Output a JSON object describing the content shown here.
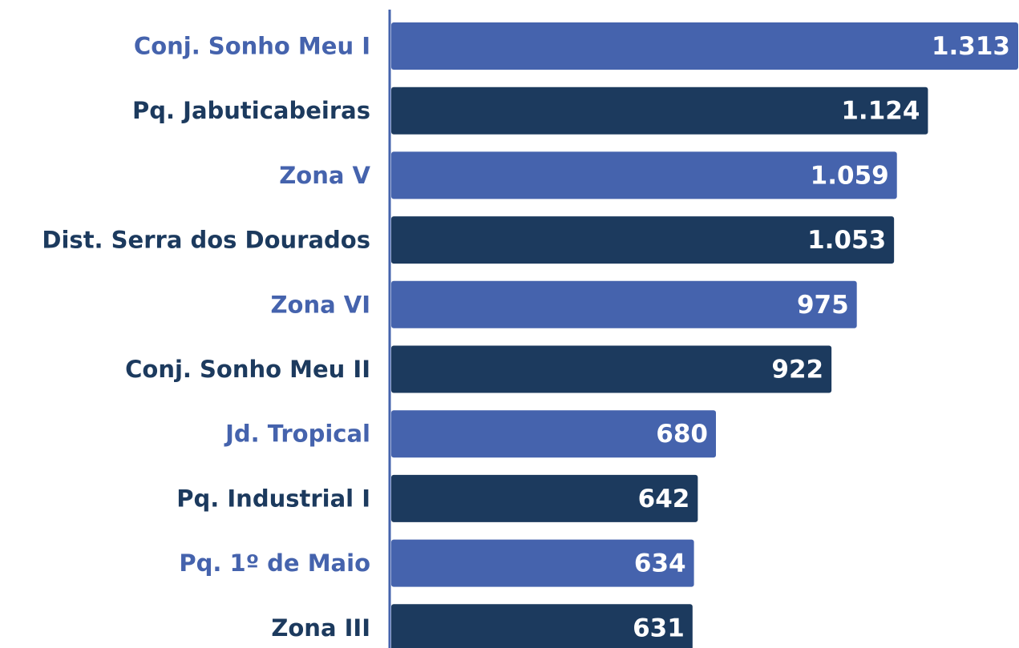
{
  "chart_data": {
    "type": "barh",
    "categories": [
      "Conj. Sonho Meu I",
      "Pq. Jabuticabeiras",
      "Zona V",
      "Dist. Serra dos Dourados",
      "Zona VI",
      "Conj. Sonho Meu II",
      "Jd. Tropical",
      "Pq. Industrial I",
      "Pq. 1º de Maio",
      "Zona III"
    ],
    "values": [
      1313,
      1124,
      1059,
      1053,
      975,
      922,
      680,
      642,
      634,
      631
    ],
    "value_labels": [
      "1.313",
      "1.124",
      "1.059",
      "1.053",
      "975",
      "922",
      "680",
      "642",
      "634",
      "631"
    ],
    "colors": [
      "#4563ad",
      "#1c3a5e",
      "#4563ad",
      "#1c3a5e",
      "#4563ad",
      "#1c3a5e",
      "#4563ad",
      "#1c3a5e",
      "#4563ad",
      "#1c3a5e"
    ]
  }
}
